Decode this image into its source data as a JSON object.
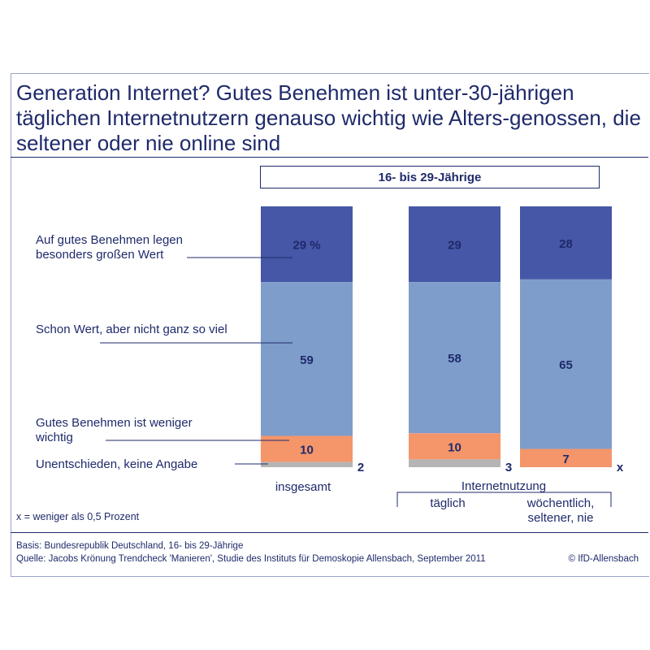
{
  "title": "Generation Internet? Gutes Benehmen ist unter-30-jährigen täglichen Internetnutzern genauso wichtig wie Alters-genossen, die seltener oder nie online sind",
  "group_header": "16- bis 29-Jährige",
  "group_label": "Internetnutzung",
  "footnote": "x = weniger als 0,5 Prozent",
  "basis": "Basis: Bundesrepublik Deutschland, 16- bis 29-Jährige",
  "source": "Quelle: Jacobs Krönung Trendcheck 'Manieren', Studie des Instituts für Demoskopie Allensbach, September 2011",
  "copyright": "© IfD-Allensbach",
  "legend": [
    "Auf gutes Benehmen legen besonders großen Wert",
    "Schon Wert, aber nicht ganz so viel",
    "Gutes Benehmen ist weniger wichtig",
    "Unentschieden, keine Angabe"
  ],
  "colors": {
    "text": "#1f2a6b",
    "series": [
      "#4557a6",
      "#7f9dcb",
      "#f4956a",
      "#b5b5b5"
    ]
  },
  "chart_data": {
    "type": "bar",
    "stacked": true,
    "unit": "%",
    "categories": [
      "insgesamt",
      "täglich",
      "wöchentlich, seltener, nie"
    ],
    "series": [
      {
        "name": "Auf gutes Benehmen legen besonders großen Wert",
        "values": [
          29,
          29,
          28
        ],
        "labels": [
          "29 %",
          "29",
          "28"
        ]
      },
      {
        "name": "Schon Wert, aber nicht ganz so viel",
        "values": [
          59,
          58,
          65
        ],
        "labels": [
          "59",
          "58",
          "65"
        ]
      },
      {
        "name": "Gutes Benehmen ist weniger wichtig",
        "values": [
          10,
          10,
          7
        ],
        "labels": [
          "10",
          "10",
          "7"
        ]
      },
      {
        "name": "Unentschieden, keine Angabe",
        "values": [
          2,
          3,
          0
        ],
        "labels": [
          "2",
          "3",
          "x"
        ]
      }
    ],
    "ylim": [
      0,
      100
    ],
    "grid": false
  }
}
